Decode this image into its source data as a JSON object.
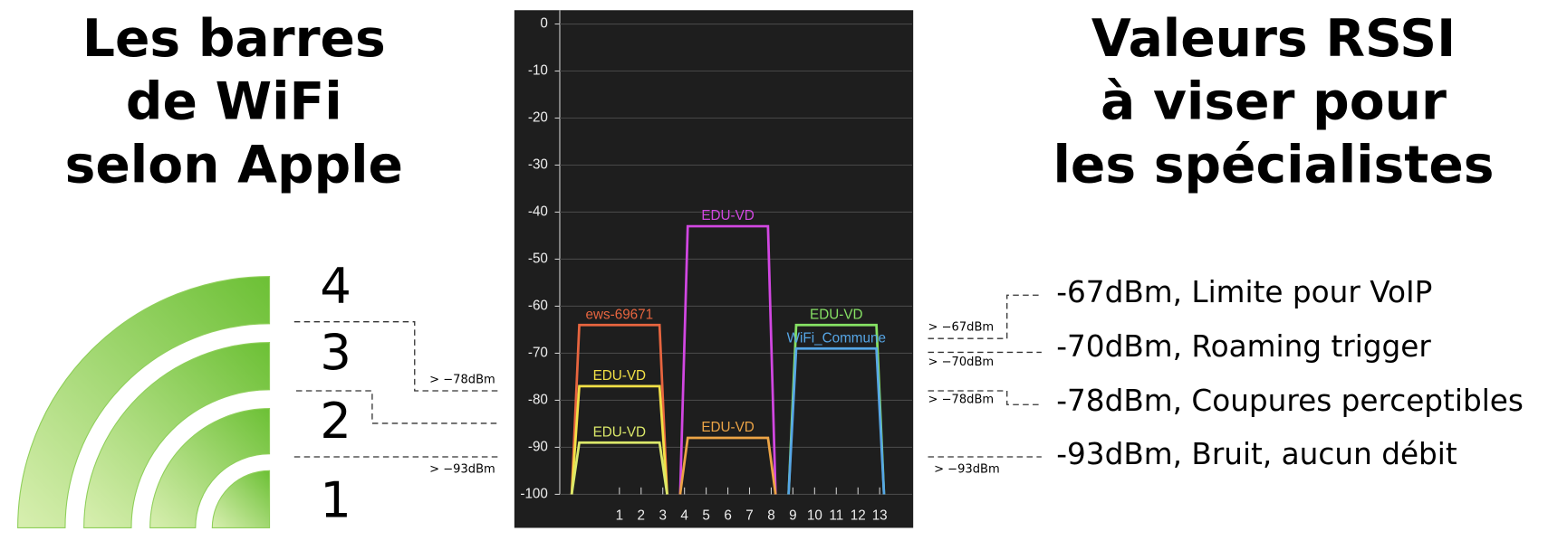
{
  "left_panel": {
    "title_lines": [
      "Les barres",
      "de WiFi",
      "selon Apple"
    ],
    "bar_labels": [
      "4",
      "3",
      "2",
      "1"
    ],
    "thresholds": [
      "> −78dBm",
      "> −93dBm"
    ]
  },
  "right_panel": {
    "title_lines": [
      "Valeurs RSSI",
      "à viser pour",
      "les spécialistes"
    ],
    "items": [
      "-67dBm, Limite pour VoIP",
      "-70dBm, Roaming trigger",
      "-78dBm, Coupures perceptibles",
      "-93dBm, Bruit, aucun débit"
    ],
    "thresholds": [
      "> −67dBm",
      "> −70dBm",
      "> −78dBm",
      "> −93dBm"
    ]
  },
  "chart_data": {
    "type": "line",
    "xlim": [
      -1.75,
      14.5
    ],
    "xticks": [
      1,
      2,
      3,
      4,
      5,
      6,
      7,
      8,
      9,
      10,
      11,
      12,
      13
    ],
    "ylim": [
      -100,
      0
    ],
    "yticks": [
      0,
      -10,
      -20,
      -30,
      -40,
      -50,
      -60,
      -70,
      -80,
      -90,
      -100
    ],
    "grid": true,
    "series": [
      {
        "name": "ews-69671",
        "color": "#e8653f",
        "x": [
          -1.2,
          -0.85,
          2.85,
          3.2
        ],
        "values": [
          -100,
          -64,
          -64,
          -100
        ]
      },
      {
        "name": "EDU-VD",
        "color": "#f2e046",
        "x": [
          -1.2,
          -0.85,
          2.85,
          3.2
        ],
        "values": [
          -100,
          -77,
          -77,
          -100
        ]
      },
      {
        "name": "EDU-VD",
        "color": "#dbe86a",
        "x": [
          -1.2,
          -0.85,
          2.85,
          3.2
        ],
        "values": [
          -100,
          -89,
          -89,
          -100
        ]
      },
      {
        "name": "EDU-VD",
        "color": "#d247e2",
        "x": [
          3.8,
          4.15,
          7.85,
          8.2
        ],
        "values": [
          -100,
          -43,
          -43,
          -100
        ]
      },
      {
        "name": "EDU-VD",
        "color": "#eca446",
        "x": [
          3.8,
          4.15,
          7.85,
          8.2
        ],
        "values": [
          -100,
          -88,
          -88,
          -100
        ]
      },
      {
        "name": "EDU-VD",
        "color": "#86e264",
        "x": [
          8.8,
          9.15,
          12.85,
          13.2
        ],
        "values": [
          -100,
          -64,
          -64,
          -100
        ]
      },
      {
        "name": "WiFi_Commune",
        "color": "#56a6e6",
        "x": [
          8.8,
          9.15,
          12.85,
          13.2
        ],
        "values": [
          -100,
          -69,
          -69,
          -100
        ]
      }
    ]
  }
}
